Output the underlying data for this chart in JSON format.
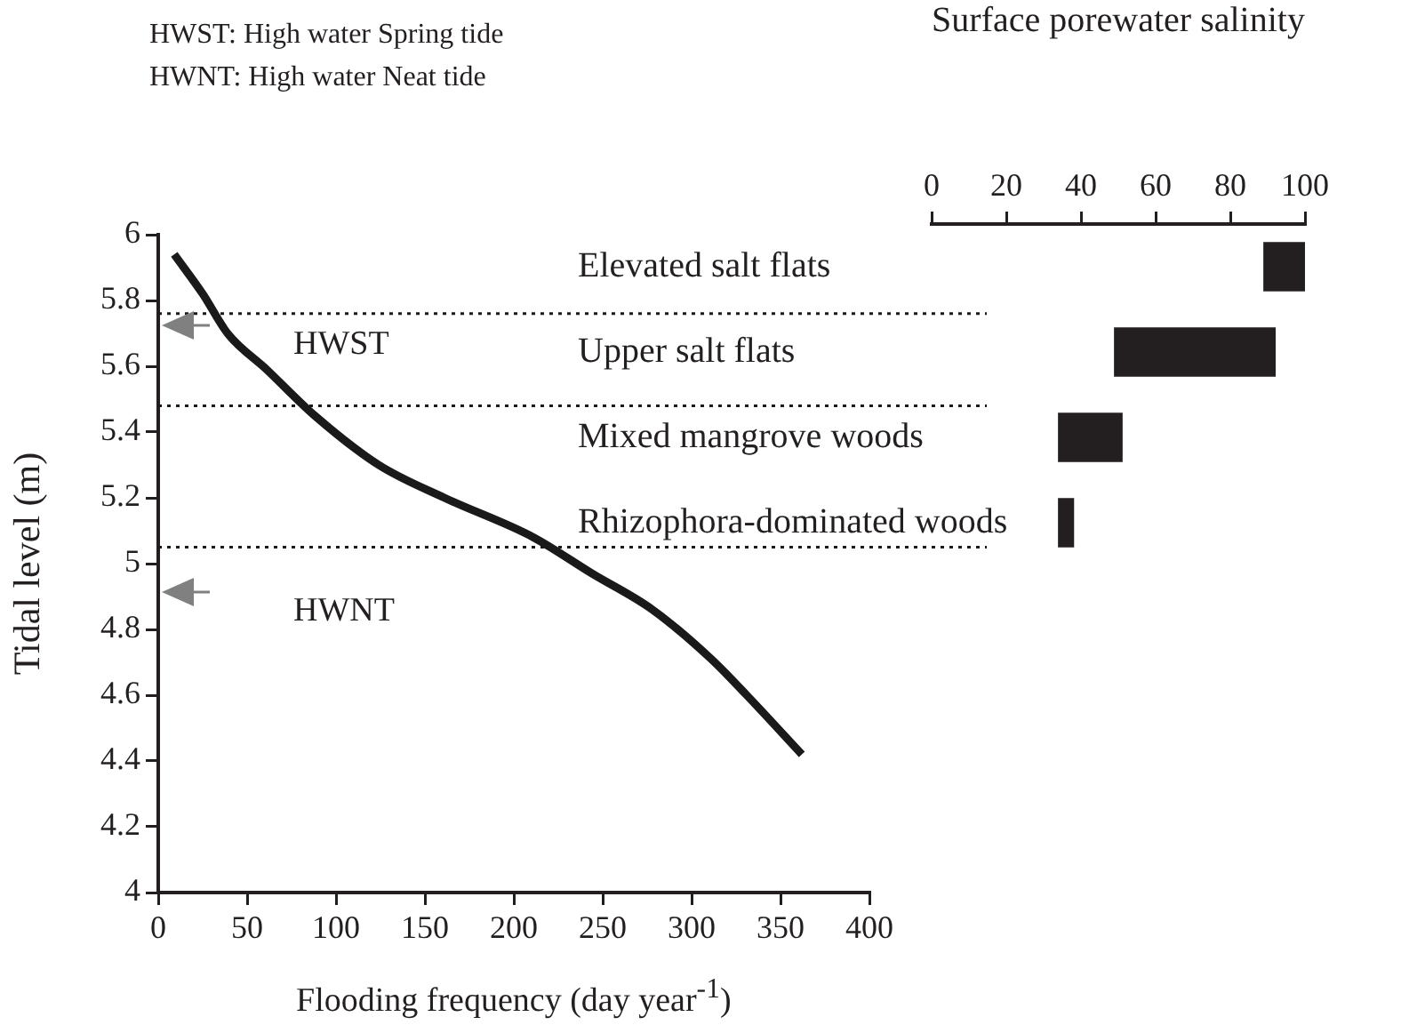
{
  "chart_data": [
    {
      "type": "line",
      "xlabel": "Flooding frequency (day year$^{-1}$)",
      "ylabel": "Tidal level (m)",
      "x": [
        9,
        25,
        39,
        61,
        88,
        124,
        161,
        211,
        244,
        278,
        311,
        331,
        362
      ],
      "series": [
        {
          "color": "#1a1a1a",
          "values": [
            5.94,
            5.82,
            5.7,
            5.59,
            5.45,
            5.3,
            5.2,
            5.08,
            4.97,
            4.86,
            4.71,
            4.6,
            4.42
          ]
        }
      ],
      "xlim": [
        0,
        400
      ],
      "xticks": [
        0,
        50,
        100,
        150,
        200,
        250,
        300,
        350,
        400
      ],
      "ylim": [
        4,
        6
      ],
      "yticks": [
        {
          "value": 4,
          "label": "4"
        },
        {
          "value": 4.2,
          "label": "4.2"
        },
        {
          "value": 4.4,
          "label": "4.4"
        },
        {
          "value": 4.6,
          "label": "4.6"
        },
        {
          "value": 4.8,
          "label": "4.8"
        },
        {
          "value": 5,
          "label": "5"
        },
        {
          "value": 5.2,
          "label": "5.2"
        },
        {
          "value": 5.4,
          "label": "5.4"
        },
        {
          "value": 5.6,
          "label": "5.6"
        },
        {
          "value": 5.8,
          "label": "5.8"
        },
        {
          "value": 6,
          "label": "6"
        }
      ],
      "ref_lines": [
        {
          "axis": "y",
          "value": 5.76,
          "color": "#1a1a1a",
          "line_style": "dotted"
        },
        {
          "axis": "y",
          "value": 5.48,
          "color": "#1a1a1a",
          "line_style": "dotted"
        },
        {
          "axis": "y",
          "value": 5.05,
          "color": "#1a1a1a",
          "line_style": "dotted"
        }
      ],
      "annotations": [
        "HWST: High water Spring tide",
        "HWNT: High water Neat tide",
        "HWST",
        "HWNT"
      ],
      "grid": false,
      "legend": false
    },
    {
      "type": "bar",
      "orientation": "horizontal",
      "xlabel": "Surface porewater salinity",
      "categories": [
        "Elevated salt flats",
        "Upper salt flats",
        "Mixed mangrove woods",
        "Rhizophora-dominated woods"
      ],
      "base": [
        89,
        49,
        34,
        34
      ],
      "values": [
        11,
        43,
        17,
        4
      ],
      "color": "#231f20",
      "xlim": [
        0,
        100
      ],
      "xticks": [
        0,
        20,
        40,
        60,
        80,
        100
      ],
      "grid": false,
      "legend": false
    }
  ]
}
